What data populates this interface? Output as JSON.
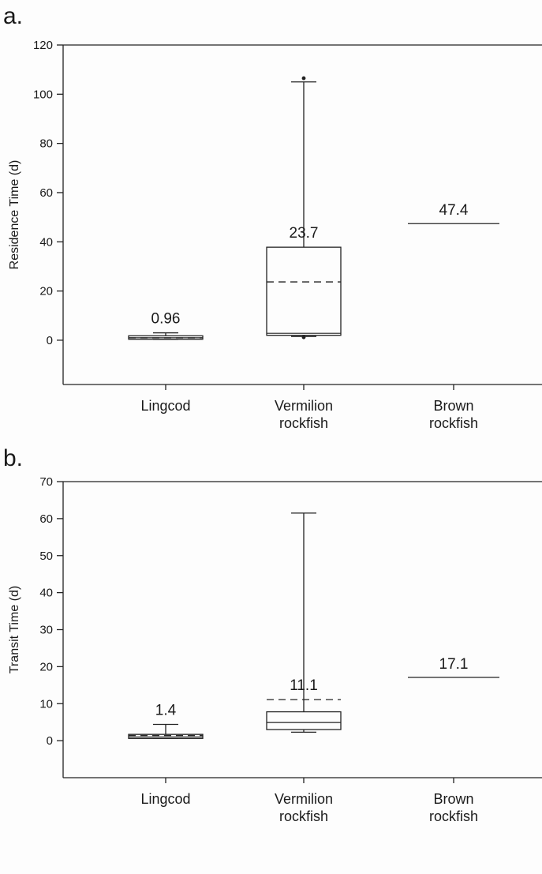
{
  "chart_data": [
    {
      "type": "box",
      "panel": "a.",
      "ylabel": "Residence Time (d)",
      "ylim": [
        -18,
        120
      ],
      "yticks": [
        0,
        20,
        40,
        60,
        80,
        100,
        120
      ],
      "categories": [
        "Lingcod",
        "Vermilion\nrockfish",
        "Brown\nrockfish"
      ],
      "boxes": [
        {
          "category": "Lingcod",
          "q1": 0.4,
          "median": 1.0,
          "q3": 1.8,
          "whisker_low": 0.4,
          "whisker_high": 3.0,
          "mean": 0.96,
          "outliers": [],
          "mean_label": "0.96"
        },
        {
          "category": "Vermilion rockfish",
          "q1": 2.0,
          "median": 2.8,
          "q3": 37.8,
          "whisker_low": 1.5,
          "whisker_high": 105,
          "mean": 23.7,
          "outliers": [
            106.5,
            1.2
          ],
          "mean_label": "23.7"
        },
        {
          "category": "Brown rockfish",
          "single_value": 47.4,
          "mean": 47.4,
          "mean_label": "47.4"
        }
      ]
    },
    {
      "type": "box",
      "panel": "b.",
      "ylabel": "Transit Time (d)",
      "ylim": [
        -10,
        70
      ],
      "yticks": [
        0,
        10,
        20,
        30,
        40,
        50,
        60,
        70
      ],
      "categories": [
        "Lingcod",
        "Vermilion\nrockfish",
        "Brown\nrockfish"
      ],
      "boxes": [
        {
          "category": "Lingcod",
          "q1": 0.6,
          "median": 1.0,
          "q3": 1.7,
          "whisker_low": 0.6,
          "whisker_high": 4.4,
          "mean": 1.4,
          "outliers": [],
          "mean_label": "1.4"
        },
        {
          "category": "Vermilion rockfish",
          "q1": 3.0,
          "median": 4.9,
          "q3": 7.8,
          "whisker_low": 2.3,
          "whisker_high": 61.5,
          "mean": 11.1,
          "outliers": [],
          "mean_label": "11.1"
        },
        {
          "category": "Brown rockfish",
          "single_value": 17.1,
          "mean": 17.1,
          "mean_label": "17.1"
        }
      ]
    }
  ]
}
